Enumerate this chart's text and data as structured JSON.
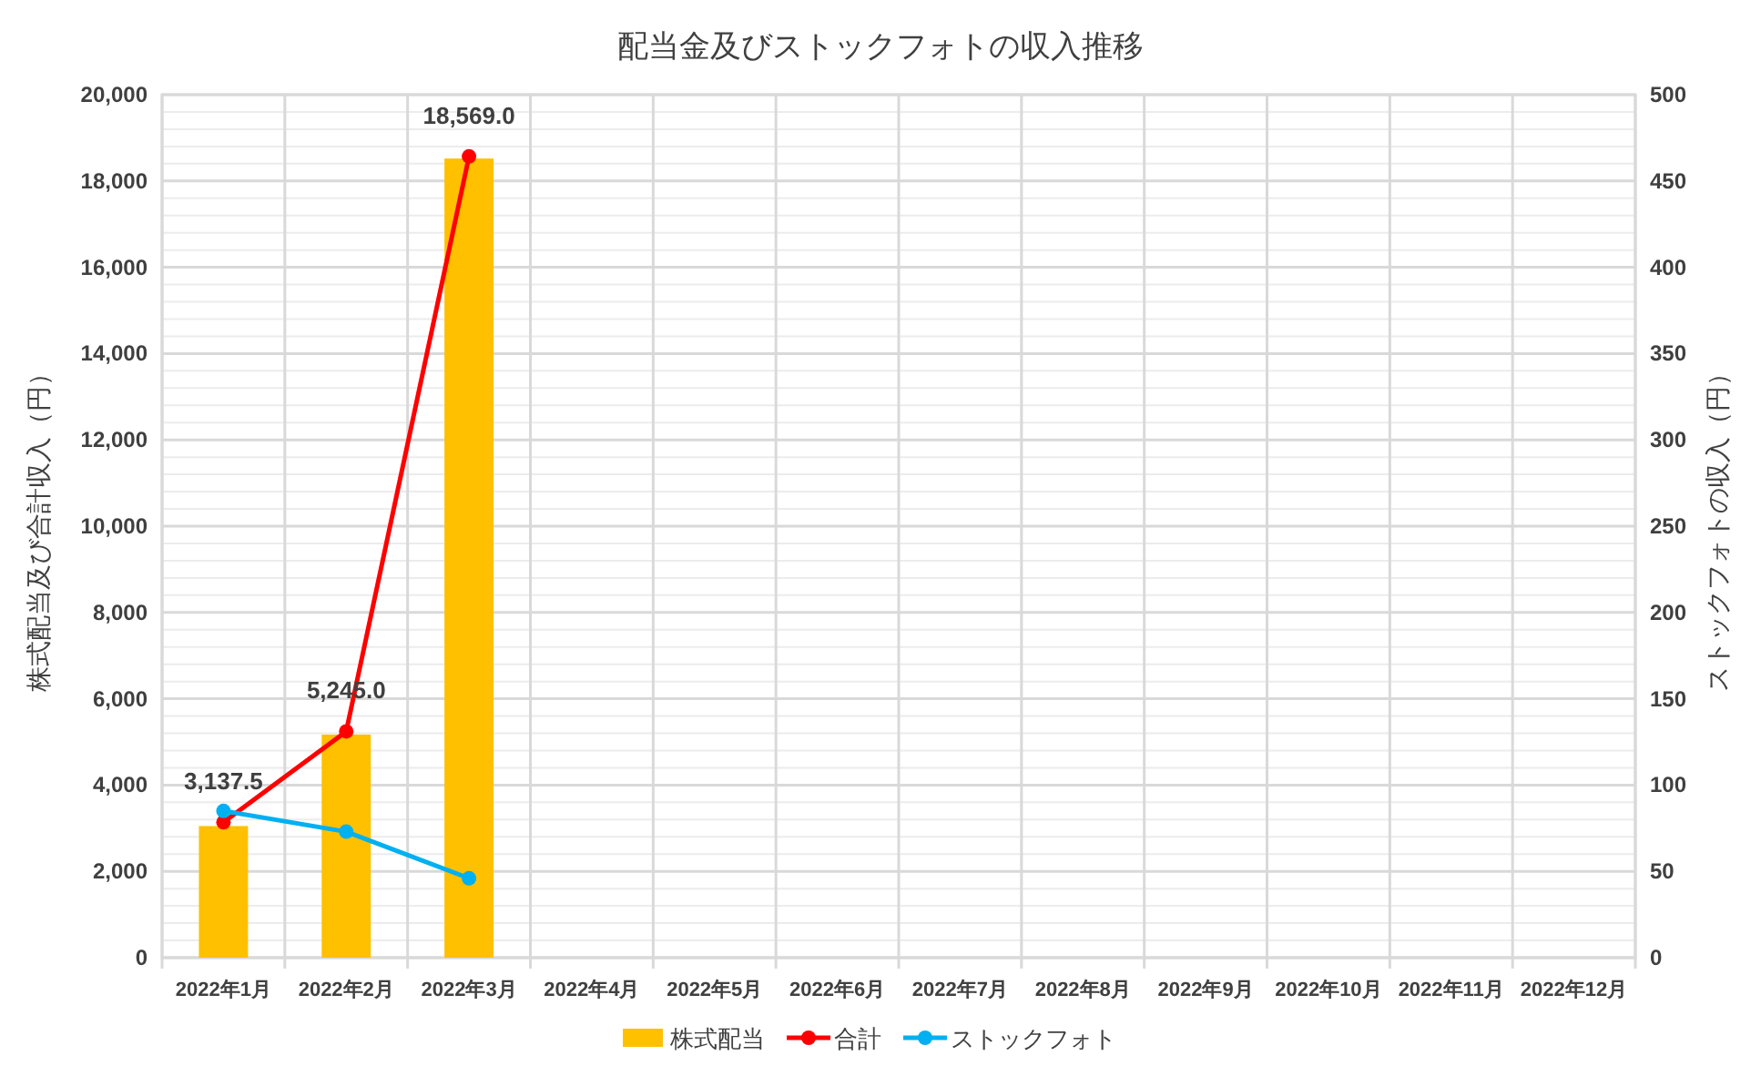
{
  "chart_data": {
    "type": "bar",
    "title": "配当金及びストックフォトの収入推移",
    "categories": [
      "2022年1月",
      "2022年2月",
      "2022年3月",
      "2022年4月",
      "2022年5月",
      "2022年6月",
      "2022年7月",
      "2022年8月",
      "2022年9月",
      "2022年10月",
      "2022年11月",
      "2022年12月"
    ],
    "ylabel": "株式配当及び合計収入（円）",
    "y2label": "ストックフォトの収入（円）",
    "ylim": [
      0,
      20000
    ],
    "yticks": [
      0,
      {
        "value": 2000,
        "label": "2,000"
      },
      {
        "value": 4000,
        "label": "4,000"
      },
      {
        "value": 6000,
        "label": "6,000"
      },
      {
        "value": 8000,
        "label": "8,000"
      },
      {
        "value": 10000,
        "label": "10,000"
      },
      {
        "value": 12000,
        "label": "12,000"
      },
      {
        "value": 14000,
        "label": "14,000"
      },
      {
        "value": 16000,
        "label": "16,000"
      },
      {
        "value": 18000,
        "label": "18,000"
      },
      {
        "value": 20000,
        "label": "20,000"
      }
    ],
    "y2lim": [
      0,
      500
    ],
    "y2ticks": [
      0,
      50,
      100,
      150,
      200,
      250,
      300,
      350,
      400,
      450,
      500
    ],
    "grid": true,
    "legend": "bottom",
    "marker": "circle",
    "series": [
      {
        "name": "株式配当",
        "color": "#ffc000",
        "values": [
          3050,
          5170,
          18520,
          null,
          null,
          null,
          null,
          null,
          null,
          null,
          null,
          null
        ]
      },
      {
        "name": "合計",
        "type": "line",
        "color": "#ff0000",
        "values": [
          3137.5,
          5245.0,
          18569.0,
          null,
          null,
          null,
          null,
          null,
          null,
          null,
          null,
          null
        ],
        "value_labels": [
          "3,137.5",
          "5,245.0",
          "18,569.0",
          null,
          null,
          null,
          null,
          null,
          null,
          null,
          null,
          null
        ]
      },
      {
        "name": "ストックフォト",
        "type": "line",
        "axis": "y2",
        "color": "#00b0f0",
        "values": [
          85,
          73,
          46,
          null,
          null,
          null,
          null,
          null,
          null,
          null,
          null,
          null
        ]
      }
    ]
  }
}
